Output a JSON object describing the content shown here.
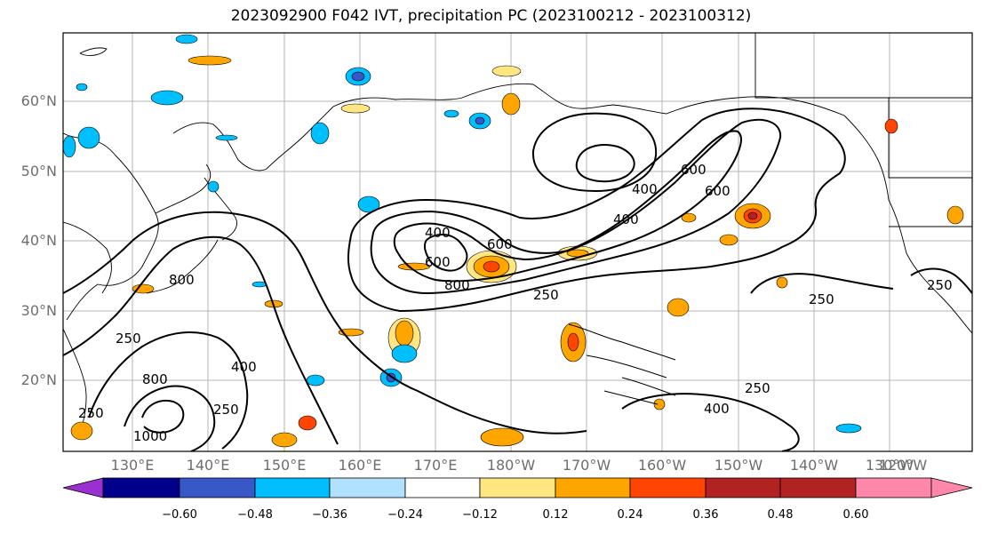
{
  "title": "2023092900 F042 IVT, precipitation PC (2023100212 - 2023100312)",
  "latitude_labels": [
    "60°N",
    "50°N",
    "40°N",
    "30°N",
    "20°N"
  ],
  "longitude_labels": [
    "130°E",
    "140°E",
    "150°E",
    "160°E",
    "170°E",
    "180°W",
    "170°W",
    "160°W",
    "150°W",
    "140°W",
    "130°W",
    "120°W"
  ],
  "contour_labels": [
    "400",
    "400",
    "400",
    "600",
    "600",
    "800",
    "250",
    "250",
    "250",
    "800",
    "1000",
    "250",
    "400",
    "400",
    "600",
    "600",
    "800",
    "250",
    "250",
    "250"
  ],
  "colorbar": {
    "ticks": [
      "−0.60",
      "−0.48",
      "−0.36",
      "−0.24",
      "−0.12",
      "0.12",
      "0.24",
      "0.36",
      "0.48",
      "0.60"
    ],
    "colors": [
      "#9b30d0",
      "#00008b",
      "#3858c8",
      "#00bfff",
      "#b0e2ff",
      "#ffffff",
      "#ffe680",
      "#ffa500",
      "#ff4500",
      "#b22222",
      "#ff88aa"
    ]
  },
  "shading_colors": {
    "warm_light": "#ffe680",
    "warm_mid": "#ffa500",
    "warm_strong": "#ff4500",
    "warm_max": "#b22222",
    "cool_light": "#b0e2ff",
    "cool_mid": "#00bfff",
    "cool_strong": "#3858c8"
  }
}
